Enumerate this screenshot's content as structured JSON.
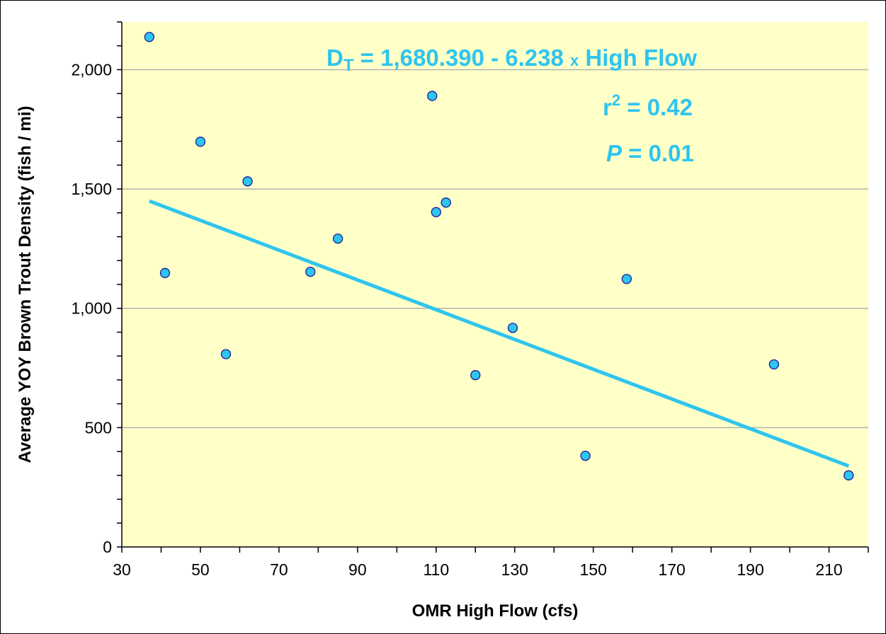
{
  "chart_data": {
    "type": "scatter",
    "xlabel": "OMR High Flow  (cfs)",
    "ylabel": "Average YOY Brown Trout Density (fish / mi)",
    "xlim": [
      30,
      220
    ],
    "ylim": [
      0,
      2200
    ],
    "x_ticks": [
      30,
      50,
      70,
      90,
      110,
      130,
      150,
      170,
      190,
      210
    ],
    "x_tick_labels": [
      "30",
      "50",
      "70",
      "90",
      "110",
      "130",
      "150",
      "170",
      "190",
      "210"
    ],
    "y_ticks": [
      0,
      500,
      1000,
      1500,
      2000
    ],
    "y_tick_labels": [
      "0",
      "500",
      "1,000",
      "1,500",
      "2,000"
    ],
    "grid": "horizontal",
    "background_color": "#ffffc8",
    "point_color": "#2ec5ef",
    "line_color": "#2ec5ef",
    "points": [
      {
        "x": 37,
        "y": 2137
      },
      {
        "x": 41,
        "y": 1148
      },
      {
        "x": 50,
        "y": 1698
      },
      {
        "x": 56.5,
        "y": 808
      },
      {
        "x": 62,
        "y": 1532
      },
      {
        "x": 78,
        "y": 1153
      },
      {
        "x": 85,
        "y": 1292
      },
      {
        "x": 109,
        "y": 1890
      },
      {
        "x": 110,
        "y": 1403
      },
      {
        "x": 112.5,
        "y": 1443
      },
      {
        "x": 120,
        "y": 720
      },
      {
        "x": 129.5,
        "y": 918
      },
      {
        "x": 148,
        "y": 382
      },
      {
        "x": 158.5,
        "y": 1123
      },
      {
        "x": 196,
        "y": 765
      },
      {
        "x": 215,
        "y": 300
      }
    ],
    "fit_line": {
      "x_start": 37,
      "x_end": 215,
      "intercept": 1680.39,
      "slope": -6.238
    },
    "annotations": {
      "equation_lhs": "D",
      "equation_sub": "T",
      "equation_rest": " = 1,680.390 - 6.238 ",
      "equation_x": "x",
      "equation_tail": " High Flow",
      "r2_r": "r",
      "r2_sup": "2",
      "r2_value": " = 0.42",
      "p_label": "P",
      "p_value": " = 0.01"
    }
  }
}
